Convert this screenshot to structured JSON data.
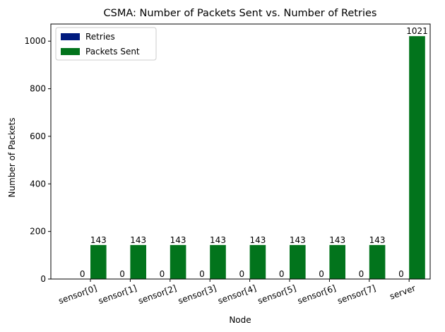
{
  "chart_data": {
    "type": "bar",
    "title": "CSMA: Number of Packets Sent vs. Number of Retries",
    "xlabel": "Node",
    "ylabel": "Number of Packets",
    "categories": [
      "sensor[0]",
      "sensor[1]",
      "sensor[2]",
      "sensor[3]",
      "sensor[4]",
      "sensor[5]",
      "sensor[6]",
      "sensor[7]",
      "server"
    ],
    "series": [
      {
        "name": "Retries",
        "color": "#001b7f",
        "values": [
          0,
          0,
          0,
          0,
          0,
          0,
          0,
          0,
          0
        ]
      },
      {
        "name": "Packets Sent",
        "color": "#02741c",
        "values": [
          143,
          143,
          143,
          143,
          143,
          143,
          143,
          143,
          1021
        ]
      }
    ],
    "ylim": [
      0,
      1072
    ],
    "yticks": [
      0,
      200,
      400,
      600,
      800,
      1000
    ],
    "xtick_rotation_deg": -20,
    "grid": false,
    "legend_position": "top-left"
  }
}
